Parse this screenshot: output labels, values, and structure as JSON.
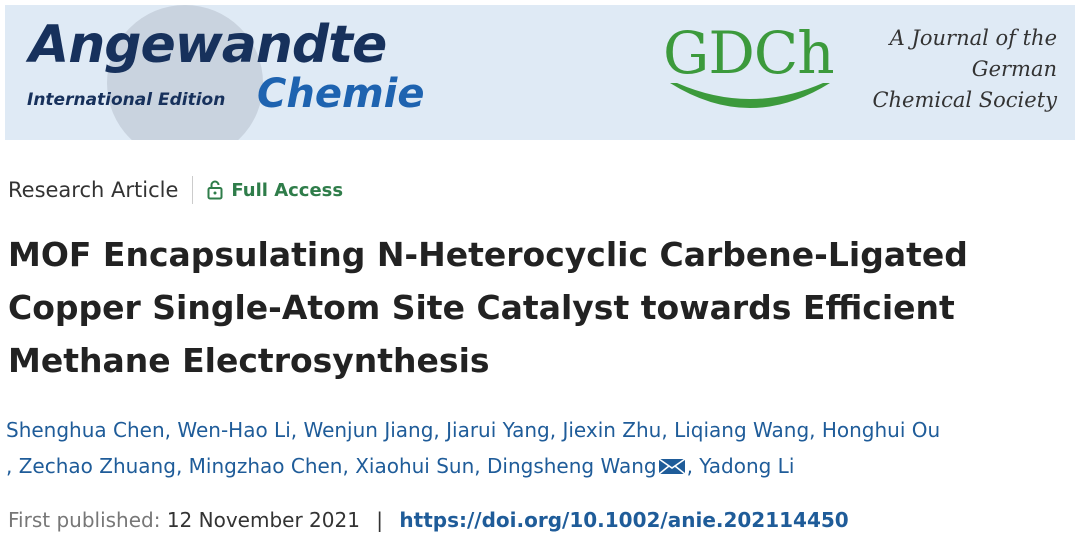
{
  "banner": {
    "journal_name": "Angewandte",
    "edition": "International Edition",
    "subtitle": "Chemie",
    "society_logo": "GDCh",
    "society_text": [
      "A Journal of the",
      "German",
      "Chemical Society"
    ]
  },
  "article": {
    "type": "Research Article",
    "access": "Full Access",
    "title_lines": [
      "MOF Encapsulating N-Heterocyclic Carbene-Ligated",
      "Copper Single-Atom Site Catalyst towards Efficient",
      "Methane Electrosynthesis"
    ],
    "authors": [
      "Shenghua Chen",
      "Wen-Hao Li",
      "Wenjun Jiang",
      "Jiarui Yang",
      "Jiexin Zhu",
      "Liqiang Wang",
      "Honghui Ou",
      "Zechao Zhuang",
      "Mingzhao Chen",
      "Xiaohui Sun",
      "Dingsheng Wang",
      "Yadong Li"
    ],
    "author_separator": ",",
    "published_label": "First published:",
    "published_date": "12 November 2021",
    "divider": "|",
    "doi": "https://doi.org/10.1002/anie.202114450"
  }
}
